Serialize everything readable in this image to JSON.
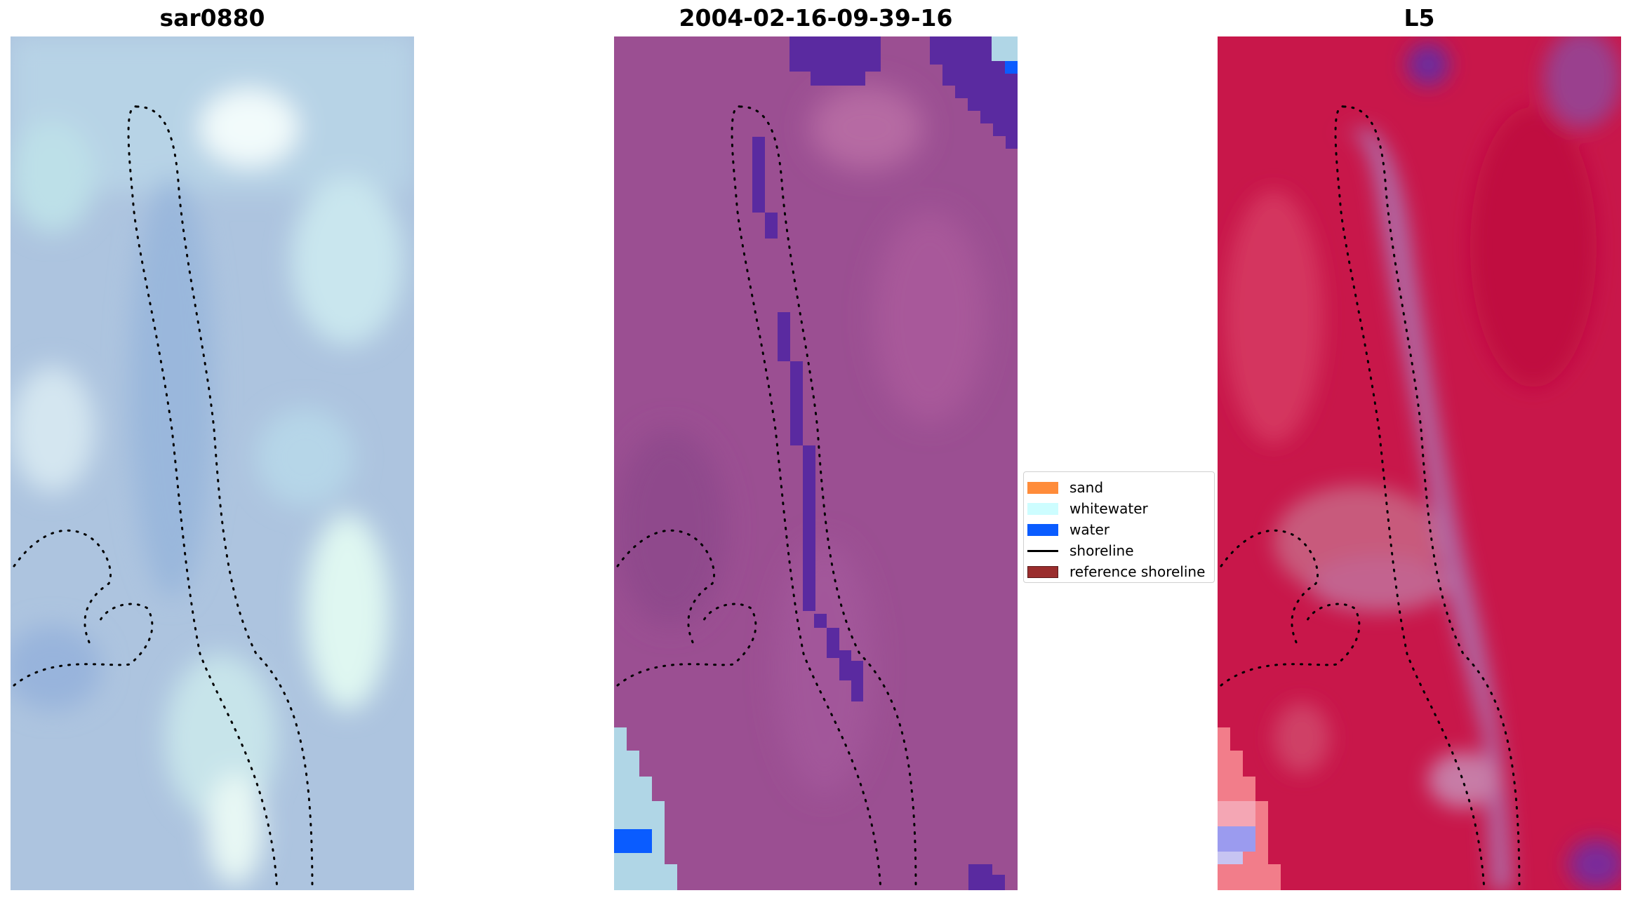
{
  "panels": [
    {
      "title": "sar0880"
    },
    {
      "title": "2004-02-16-09-39-16"
    },
    {
      "title": "L5"
    }
  ],
  "legend": {
    "items": [
      {
        "label": "sand",
        "color": "#ff8c3a",
        "kind": "patch"
      },
      {
        "label": "whitewater",
        "color": "#cdfdff",
        "kind": "patch"
      },
      {
        "label": "water",
        "color": "#0a5cff",
        "kind": "patch"
      },
      {
        "label": "shoreline",
        "color": "#000000",
        "kind": "line"
      },
      {
        "label": "reference shoreline",
        "color": "#9a2d2d",
        "kind": "patch"
      }
    ]
  },
  "colors": {
    "panel1_base": "#a9c3de",
    "panel2_base": "#9b4f92",
    "panel2_water_class": "#5a2aa0",
    "panel3_base": "#c8174a",
    "shoreline": "#000000"
  }
}
